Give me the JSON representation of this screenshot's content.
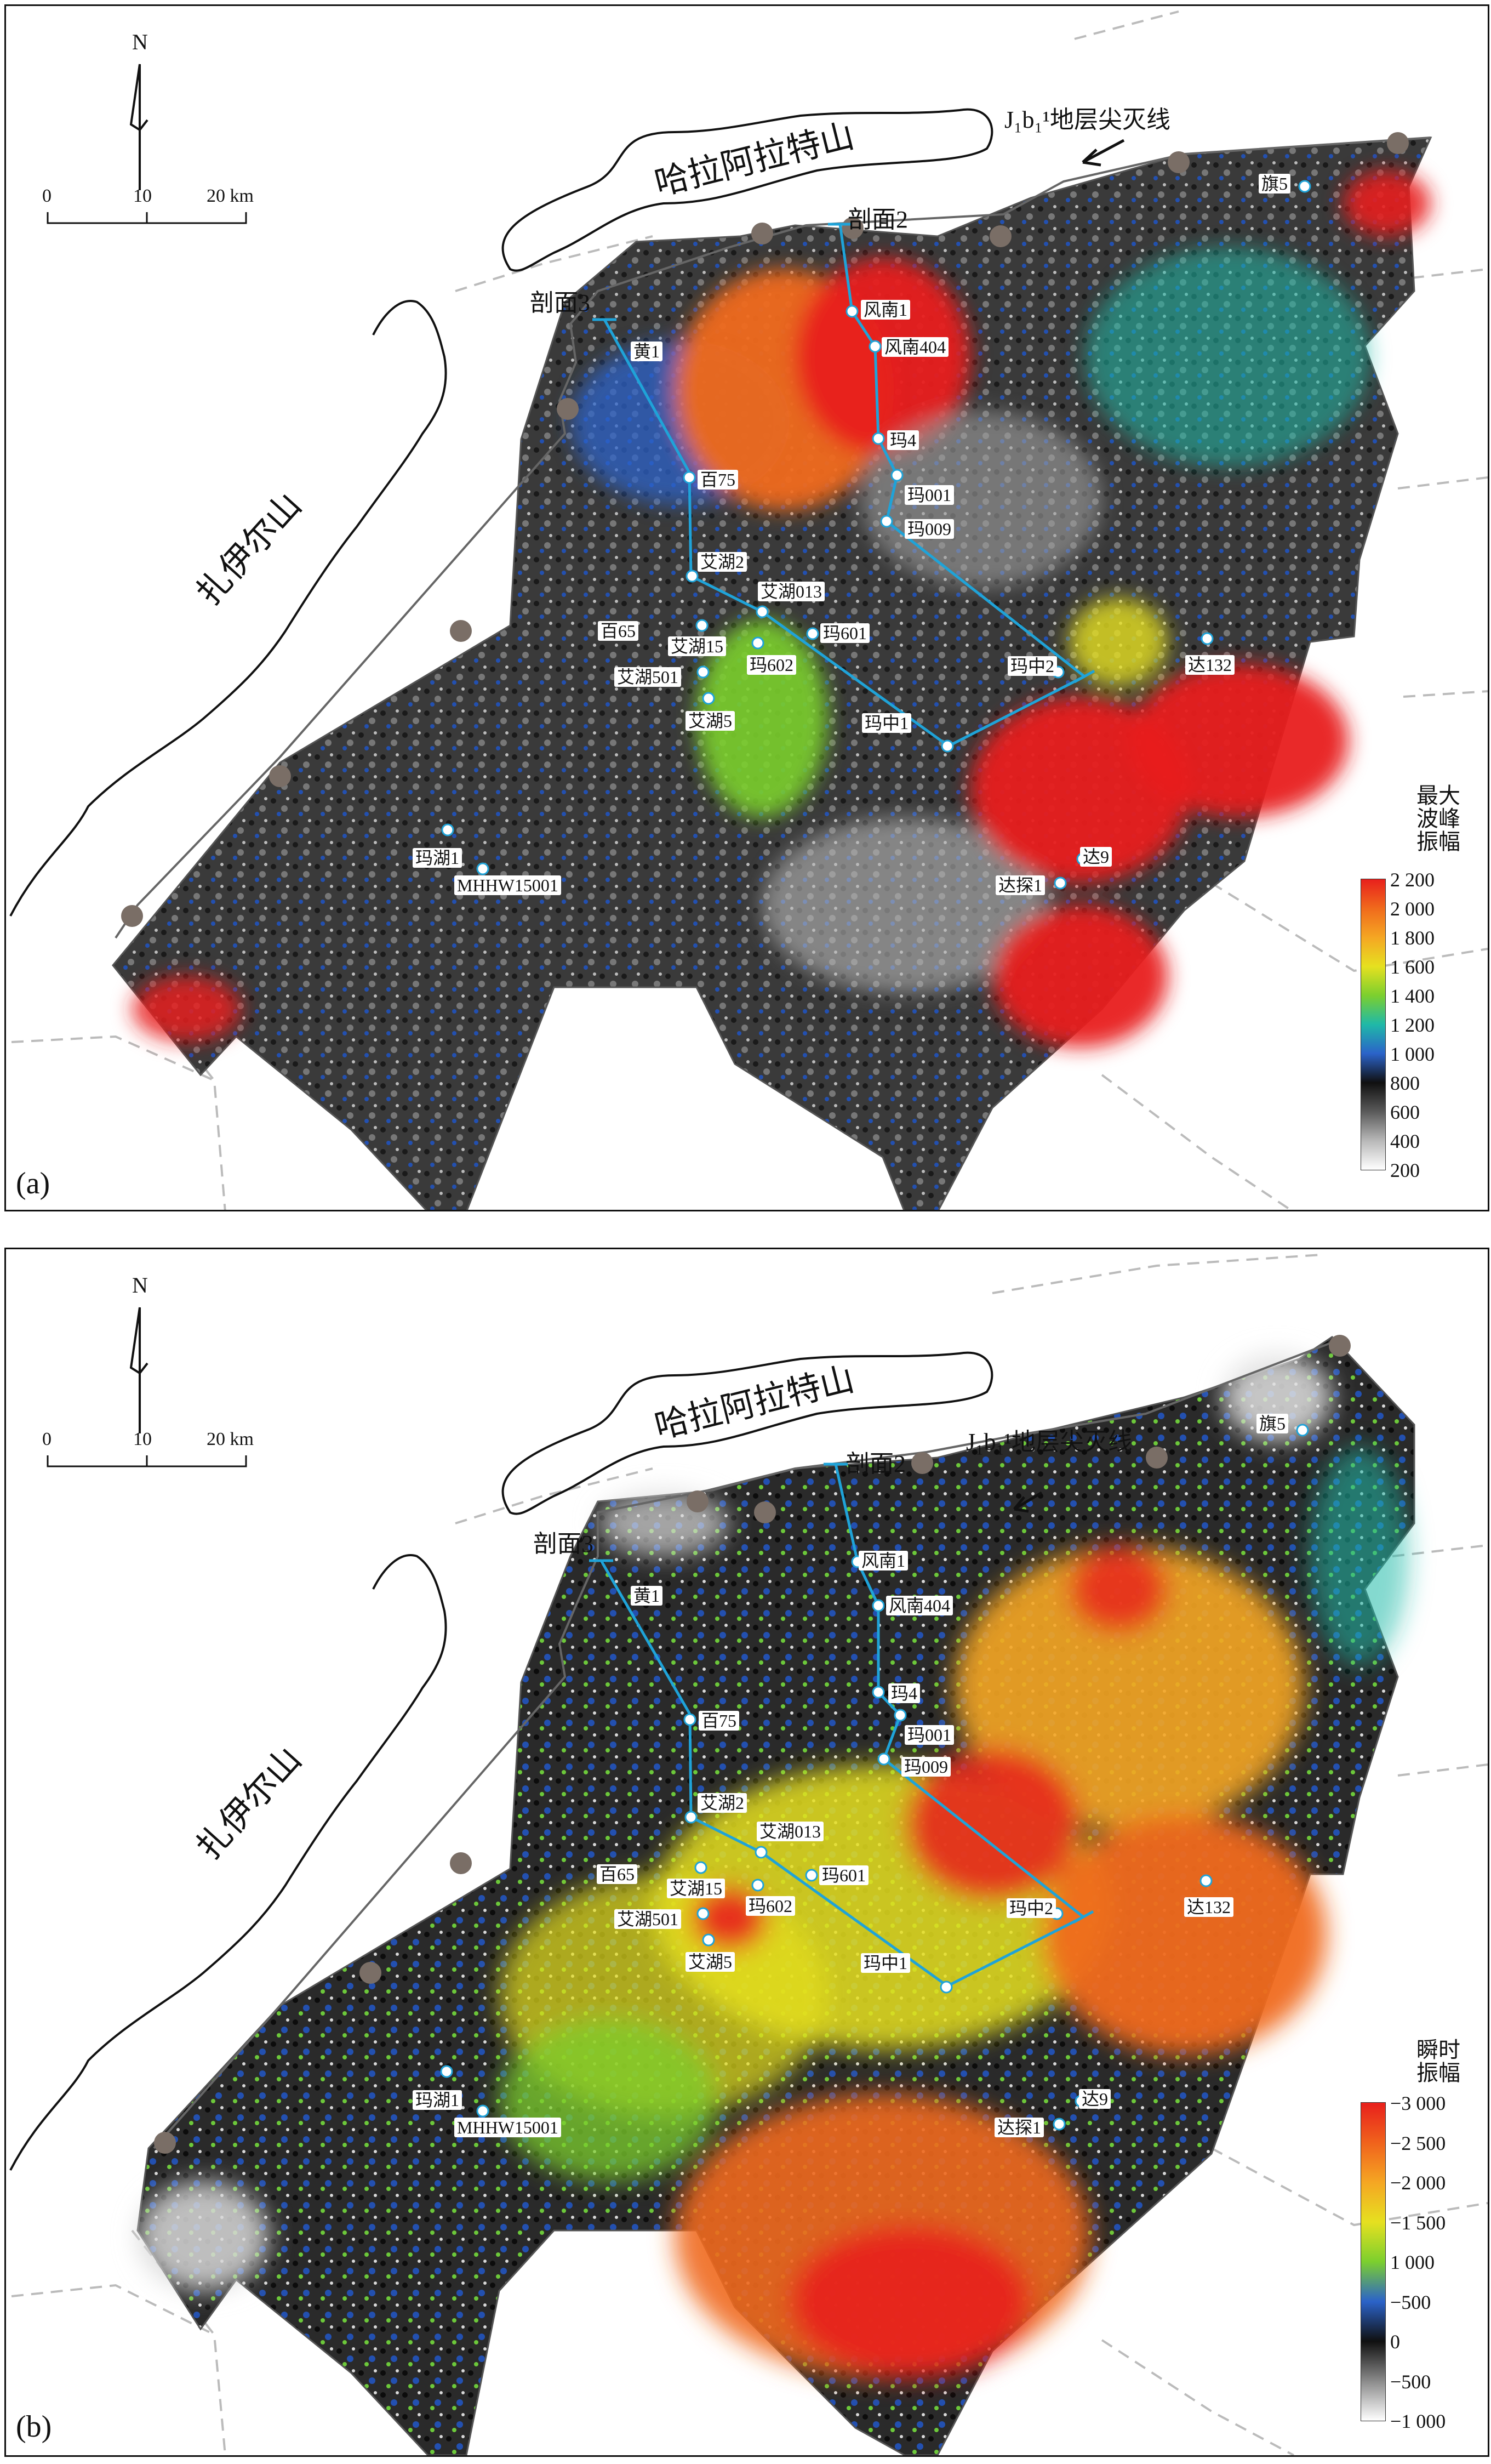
{
  "panels": [
    {
      "id": "a",
      "panel_label": "(a)",
      "north_label": "N",
      "scale": {
        "t0": "0",
        "t1": "10",
        "t2": "20 km"
      },
      "mountain1": "哈拉阿拉特山",
      "mountain2": "扎伊尔山",
      "pinchout": "J₁b₁¹地层尖灭线",
      "section2": "剖面2",
      "section3": "剖面3",
      "wells": {
        "qi5": "旗5",
        "fengnan1": "风南1",
        "fengnan404": "风南404",
        "huang1": "黄1",
        "ma4": "玛4",
        "bai75": "百75",
        "ma001": "玛001",
        "ma009": "玛009",
        "aihu2": "艾湖2",
        "aihu013": "艾湖013",
        "bai65": "百65",
        "aihu15": "艾湖15",
        "ma601": "玛601",
        "aihu501": "艾湖501",
        "ma602": "玛602",
        "mazhong2": "玛中2",
        "da132": "达132",
        "aihu5": "艾湖5",
        "mazhong1": "玛中1",
        "mahu1": "玛湖1",
        "mhhw": "MHHW15001",
        "da9": "达9",
        "datan1": "达探1"
      },
      "legend": {
        "title": "最大\n波峰\n振幅",
        "ticks": [
          "2 200",
          "2 000",
          "1 800",
          "1 600",
          "1 400",
          "1 200",
          "1 000",
          "800",
          "600",
          "400",
          "200"
        ],
        "colors": [
          "#e8201c",
          "#f06a1c",
          "#f5a623",
          "#e6e020",
          "#7ccf2e",
          "#1fb9a8",
          "#2b63c9",
          "#101010",
          "#5a5a5a",
          "#b8b8b8",
          "#ffffff"
        ]
      }
    },
    {
      "id": "b",
      "panel_label": "(b)",
      "north_label": "N",
      "scale": {
        "t0": "0",
        "t1": "10",
        "t2": "20 km"
      },
      "mountain1": "哈拉阿拉特山",
      "mountain2": "扎伊尔山",
      "pinchout": "J₁b₁¹地层尖灭线",
      "section2": "剖面2",
      "section3": "剖面3",
      "wells": {
        "qi5": "旗5",
        "fengnan1": "风南1",
        "fengnan404": "风南404",
        "huang1": "黄1",
        "ma4": "玛4",
        "bai75": "百75",
        "ma001": "玛001",
        "ma009": "玛009",
        "aihu2": "艾湖2",
        "aihu013": "艾湖013",
        "bai65": "百65",
        "aihu15": "艾湖15",
        "ma601": "玛601",
        "aihu501": "艾湖501",
        "ma602": "玛602",
        "mazhong2": "玛中2",
        "da132": "达132",
        "aihu5": "艾湖5",
        "mazhong1": "玛中1",
        "mahu1": "玛湖1",
        "mhhw": "MHHW15001",
        "da9": "达9",
        "datan1": "达探1"
      },
      "legend": {
        "title": "瞬时\n振幅",
        "ticks": [
          "−3 000",
          "−2 500",
          "−2 000",
          "−1 500",
          "1 000",
          "−500",
          "0",
          "−500",
          "−1 000"
        ],
        "colors": [
          "#e8201c",
          "#f0621c",
          "#f5a623",
          "#e6e020",
          "#7ccf2e",
          "#2b63c9",
          "#101010",
          "#8a8a8a",
          "#ffffff"
        ]
      }
    }
  ]
}
